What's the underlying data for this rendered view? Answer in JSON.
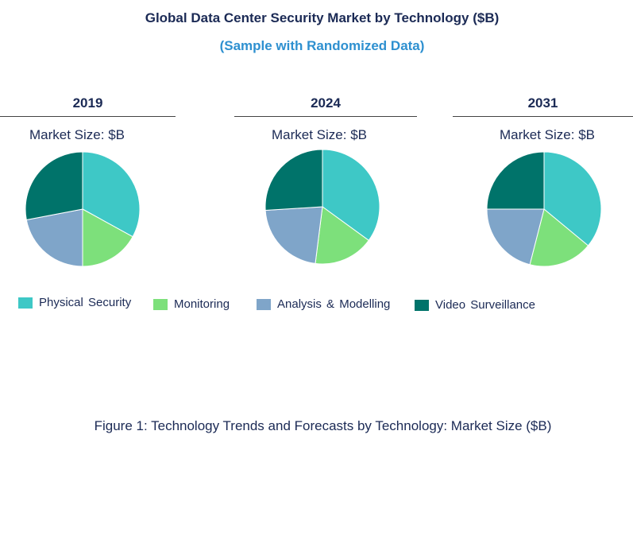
{
  "title": "Global Data Center Security Market by Technology ($B)",
  "subtitle": "(Sample with Randomized Data)",
  "caption": "Figure 1: Technology Trends and Forecasts by Technology: Market Size ($B)",
  "colors": {
    "Physical Security": "#3ec8c6",
    "Monitoring": "#7de07b",
    "Analysis & Modelling": "#7fa5c9",
    "Video Surveillance": "#00736a"
  },
  "chart_data": [
    {
      "type": "pie",
      "title": "2019",
      "subtitle": "Market Size: $B",
      "labels": [
        "Physical Security",
        "Monitoring",
        "Analysis & Modelling",
        "Video Surveillance"
      ],
      "values": [
        33,
        17,
        22,
        28
      ],
      "legend": "bottom"
    },
    {
      "type": "pie",
      "title": "2024",
      "subtitle": "Market Size: $B",
      "labels": [
        "Physical Security",
        "Monitoring",
        "Analysis & Modelling",
        "Video Surveillance"
      ],
      "values": [
        35,
        17,
        22,
        26
      ],
      "legend": "bottom"
    },
    {
      "type": "pie",
      "title": "2031",
      "subtitle": "Market Size: $B",
      "labels": [
        "Physical Security",
        "Monitoring",
        "Analysis & Modelling",
        "Video Surveillance"
      ],
      "values": [
        36,
        18,
        21,
        25
      ],
      "legend": "bottom"
    }
  ],
  "legend": {
    "items": [
      "Physical Security",
      "Monitoring",
      "Analysis & Modelling",
      "Video Surveillance"
    ]
  }
}
